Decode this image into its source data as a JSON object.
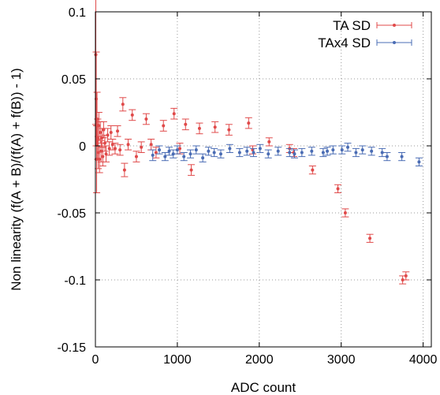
{
  "chart_data": {
    "type": "scatter",
    "title": "",
    "xlabel": "ADC count",
    "ylabel": "Non linearity (f(A + B)/(f(A) + f(B)) - 1)",
    "xlim": [
      0,
      4100
    ],
    "ylim": [
      -0.15,
      0.1
    ],
    "xticks": [
      0,
      1000,
      2000,
      3000,
      4000
    ],
    "yticks": [
      0.1,
      0.05,
      0,
      -0.05,
      -0.1,
      -0.15
    ],
    "xtick_labels": [
      "0",
      "1000",
      "2000",
      "3000",
      "4000"
    ],
    "ytick_labels": [
      "0.1",
      "0.05",
      "0",
      "-0.05",
      "-0.1",
      "-0.15"
    ],
    "grid": true,
    "legend_position": "top-right",
    "series": [
      {
        "name": "TA SD",
        "color": "#e04a4a",
        "points": [
          {
            "x": 5,
            "y": 0.068,
            "err": 0.052
          },
          {
            "x": 10,
            "y": 0.035,
            "err": 0.035
          },
          {
            "x": 15,
            "y": -0.01,
            "err": 0.025
          },
          {
            "x": 20,
            "y": 0.02,
            "err": 0.02
          },
          {
            "x": 28,
            "y": 0.005,
            "err": 0.015
          },
          {
            "x": 35,
            "y": -0.005,
            "err": 0.012
          },
          {
            "x": 42,
            "y": 0.015,
            "err": 0.01
          },
          {
            "x": 50,
            "y": -0.01,
            "err": 0.01
          },
          {
            "x": 60,
            "y": 0.01,
            "err": 0.008
          },
          {
            "x": 70,
            "y": -0.004,
            "err": 0.008
          },
          {
            "x": 80,
            "y": 0.006,
            "err": 0.007
          },
          {
            "x": 90,
            "y": -0.008,
            "err": 0.007
          },
          {
            "x": 100,
            "y": 0.012,
            "err": 0.006
          },
          {
            "x": 115,
            "y": 0.002,
            "err": 0.006
          },
          {
            "x": 130,
            "y": -0.006,
            "err": 0.006
          },
          {
            "x": 150,
            "y": 0.008,
            "err": 0.005
          },
          {
            "x": 170,
            "y": -0.002,
            "err": 0.005
          },
          {
            "x": 190,
            "y": 0.01,
            "err": 0.005
          },
          {
            "x": 210,
            "y": 0.001,
            "err": 0.004
          },
          {
            "x": 240,
            "y": -0.002,
            "err": 0.004
          },
          {
            "x": 270,
            "y": 0.011,
            "err": 0.004
          },
          {
            "x": 300,
            "y": -0.003,
            "err": 0.004
          },
          {
            "x": 335,
            "y": 0.031,
            "err": 0.005
          },
          {
            "x": 355,
            "y": -0.018,
            "err": 0.005
          },
          {
            "x": 400,
            "y": 0.001,
            "err": 0.004
          },
          {
            "x": 450,
            "y": 0.023,
            "err": 0.004
          },
          {
            "x": 500,
            "y": -0.008,
            "err": 0.004
          },
          {
            "x": 560,
            "y": -0.001,
            "err": 0.004
          },
          {
            "x": 620,
            "y": 0.02,
            "err": 0.004
          },
          {
            "x": 680,
            "y": 0.001,
            "err": 0.004
          },
          {
            "x": 740,
            "y": -0.005,
            "err": 0.004
          },
          {
            "x": 830,
            "y": 0.015,
            "err": 0.004
          },
          {
            "x": 960,
            "y": 0.024,
            "err": 0.004
          },
          {
            "x": 1030,
            "y": -0.002,
            "err": 0.004
          },
          {
            "x": 1100,
            "y": 0.016,
            "err": 0.004
          },
          {
            "x": 1170,
            "y": -0.018,
            "err": 0.004
          },
          {
            "x": 1270,
            "y": 0.013,
            "err": 0.004
          },
          {
            "x": 1460,
            "y": 0.014,
            "err": 0.004
          },
          {
            "x": 1630,
            "y": 0.012,
            "err": 0.004
          },
          {
            "x": 1870,
            "y": 0.017,
            "err": 0.004
          },
          {
            "x": 1920,
            "y": -0.003,
            "err": 0.003
          },
          {
            "x": 2120,
            "y": 0.003,
            "err": 0.003
          },
          {
            "x": 2370,
            "y": -0.002,
            "err": 0.003
          },
          {
            "x": 2420,
            "y": -0.005,
            "err": 0.003
          },
          {
            "x": 2650,
            "y": -0.018,
            "err": 0.003
          },
          {
            "x": 2960,
            "y": -0.032,
            "err": 0.003
          },
          {
            "x": 3050,
            "y": -0.05,
            "err": 0.003
          },
          {
            "x": 3350,
            "y": -0.069,
            "err": 0.003
          },
          {
            "x": 3750,
            "y": -0.1,
            "err": 0.003
          },
          {
            "x": 3790,
            "y": -0.097,
            "err": 0.003
          }
        ]
      },
      {
        "name": "TAx4 SD",
        "color": "#4a6cb4",
        "points": [
          {
            "x": 700,
            "y": -0.007,
            "err": 0.004
          },
          {
            "x": 780,
            "y": -0.003,
            "err": 0.003
          },
          {
            "x": 850,
            "y": -0.008,
            "err": 0.003
          },
          {
            "x": 900,
            "y": -0.004,
            "err": 0.003
          },
          {
            "x": 950,
            "y": -0.006,
            "err": 0.003
          },
          {
            "x": 1000,
            "y": -0.003,
            "err": 0.003
          },
          {
            "x": 1080,
            "y": -0.008,
            "err": 0.003
          },
          {
            "x": 1160,
            "y": -0.006,
            "err": 0.003
          },
          {
            "x": 1230,
            "y": -0.003,
            "err": 0.003
          },
          {
            "x": 1310,
            "y": -0.009,
            "err": 0.003
          },
          {
            "x": 1380,
            "y": -0.004,
            "err": 0.003
          },
          {
            "x": 1450,
            "y": -0.005,
            "err": 0.003
          },
          {
            "x": 1530,
            "y": -0.006,
            "err": 0.003
          },
          {
            "x": 1640,
            "y": -0.002,
            "err": 0.003
          },
          {
            "x": 1760,
            "y": -0.005,
            "err": 0.003
          },
          {
            "x": 1850,
            "y": -0.004,
            "err": 0.003
          },
          {
            "x": 1930,
            "y": -0.005,
            "err": 0.003
          },
          {
            "x": 2010,
            "y": -0.002,
            "err": 0.003
          },
          {
            "x": 2110,
            "y": -0.006,
            "err": 0.003
          },
          {
            "x": 2230,
            "y": -0.004,
            "err": 0.003
          },
          {
            "x": 2370,
            "y": -0.005,
            "err": 0.003
          },
          {
            "x": 2430,
            "y": -0.006,
            "err": 0.003
          },
          {
            "x": 2520,
            "y": -0.005,
            "err": 0.003
          },
          {
            "x": 2640,
            "y": -0.004,
            "err": 0.003
          },
          {
            "x": 2780,
            "y": -0.005,
            "err": 0.003
          },
          {
            "x": 2830,
            "y": -0.004,
            "err": 0.003
          },
          {
            "x": 2900,
            "y": -0.003,
            "err": 0.003
          },
          {
            "x": 3010,
            "y": -0.003,
            "err": 0.003
          },
          {
            "x": 3080,
            "y": -0.001,
            "err": 0.003
          },
          {
            "x": 3180,
            "y": -0.005,
            "err": 0.003
          },
          {
            "x": 3260,
            "y": -0.003,
            "err": 0.003
          },
          {
            "x": 3370,
            "y": -0.004,
            "err": 0.003
          },
          {
            "x": 3500,
            "y": -0.005,
            "err": 0.003
          },
          {
            "x": 3560,
            "y": -0.008,
            "err": 0.003
          },
          {
            "x": 3740,
            "y": -0.008,
            "err": 0.003
          },
          {
            "x": 3950,
            "y": -0.012,
            "err": 0.003
          }
        ]
      }
    ]
  }
}
